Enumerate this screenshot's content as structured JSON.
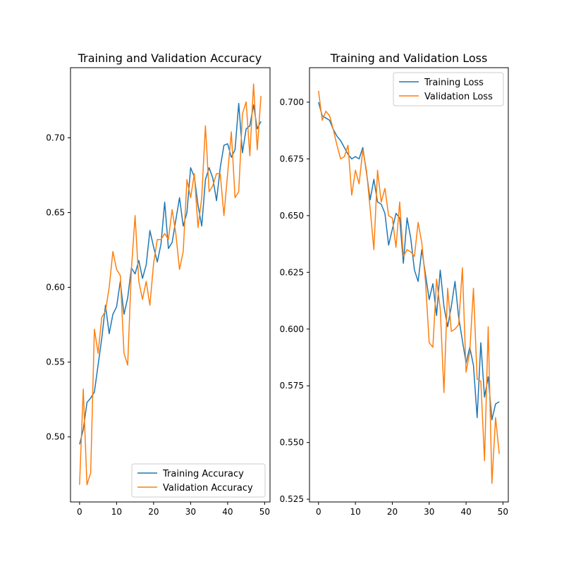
{
  "chart_data": [
    {
      "type": "line",
      "title": "Training and Validation Accuracy",
      "xlabel": "",
      "ylabel": "",
      "xlim": [
        -2.45,
        51.45
      ],
      "ylim": [
        0.4565,
        0.7469
      ],
      "xticks": [
        0,
        10,
        20,
        30,
        40,
        50
      ],
      "yticks": [
        0.5,
        0.55,
        0.6,
        0.65,
        0.7
      ],
      "ytick_labels": [
        "0.50",
        "0.55",
        "0.60",
        "0.65",
        "0.70"
      ],
      "grid": false,
      "legend_position": "lower-right",
      "x": [
        0,
        1,
        2,
        3,
        4,
        5,
        6,
        7,
        8,
        9,
        10,
        11,
        12,
        13,
        14,
        15,
        16,
        17,
        18,
        19,
        20,
        21,
        22,
        23,
        24,
        25,
        26,
        27,
        28,
        29,
        30,
        31,
        32,
        33,
        34,
        35,
        36,
        37,
        38,
        39,
        40,
        41,
        42,
        43,
        44,
        45,
        46,
        47,
        48,
        49
      ],
      "series": [
        {
          "name": "Training Accuracy",
          "color": "#1f77b4",
          "values": [
            0.495,
            0.505,
            0.523,
            0.526,
            0.53,
            0.548,
            0.566,
            0.588,
            0.569,
            0.582,
            0.587,
            0.604,
            0.582,
            0.593,
            0.613,
            0.609,
            0.618,
            0.606,
            0.615,
            0.638,
            0.627,
            0.617,
            0.629,
            0.657,
            0.626,
            0.63,
            0.645,
            0.66,
            0.641,
            0.65,
            0.68,
            0.674,
            0.655,
            0.641,
            0.672,
            0.68,
            0.673,
            0.658,
            0.68,
            0.695,
            0.696,
            0.687,
            0.692,
            0.723,
            0.69,
            0.706,
            0.708,
            0.722,
            0.706,
            0.711
          ]
        },
        {
          "name": "Validation Accuracy",
          "color": "#ff7f0e",
          "values": [
            0.468,
            0.532,
            0.468,
            0.476,
            0.572,
            0.556,
            0.58,
            0.584,
            0.6,
            0.624,
            0.612,
            0.608,
            0.556,
            0.548,
            0.612,
            0.648,
            0.604,
            0.592,
            0.604,
            0.588,
            0.616,
            0.632,
            0.632,
            0.636,
            0.632,
            0.652,
            0.636,
            0.612,
            0.624,
            0.672,
            0.66,
            0.676,
            0.64,
            0.66,
            0.708,
            0.664,
            0.668,
            0.676,
            0.676,
            0.648,
            0.676,
            0.704,
            0.66,
            0.664,
            0.716,
            0.724,
            0.688,
            0.736,
            0.692,
            0.728
          ]
        }
      ]
    },
    {
      "type": "line",
      "title": "Training and Validation Loss",
      "xlabel": "",
      "ylabel": "",
      "xlim": [
        -2.45,
        51.45
      ],
      "ylim": [
        0.5238,
        0.7152
      ],
      "xticks": [
        0,
        10,
        20,
        30,
        40,
        50
      ],
      "yticks": [
        0.525,
        0.55,
        0.575,
        0.6,
        0.625,
        0.65,
        0.675,
        0.7
      ],
      "ytick_labels": [
        "0.525",
        "0.550",
        "0.575",
        "0.600",
        "0.625",
        "0.650",
        "0.675",
        "0.700"
      ],
      "grid": false,
      "legend_position": "top-right",
      "x": [
        0,
        1,
        2,
        3,
        4,
        5,
        6,
        7,
        8,
        9,
        10,
        11,
        12,
        13,
        14,
        15,
        16,
        17,
        18,
        19,
        20,
        21,
        22,
        23,
        24,
        25,
        26,
        27,
        28,
        29,
        30,
        31,
        32,
        33,
        34,
        35,
        36,
        37,
        38,
        39,
        40,
        41,
        42,
        43,
        44,
        45,
        46,
        47,
        48,
        49
      ],
      "series": [
        {
          "name": "Training Loss",
          "color": "#1f77b4",
          "values": [
            0.7,
            0.694,
            0.693,
            0.692,
            0.688,
            0.685,
            0.683,
            0.68,
            0.677,
            0.675,
            0.676,
            0.675,
            0.68,
            0.669,
            0.657,
            0.666,
            0.656,
            0.655,
            0.651,
            0.637,
            0.644,
            0.651,
            0.649,
            0.629,
            0.649,
            0.64,
            0.626,
            0.621,
            0.635,
            0.624,
            0.613,
            0.62,
            0.606,
            0.626,
            0.61,
            0.601,
            0.61,
            0.621,
            0.605,
            0.595,
            0.585,
            0.592,
            0.584,
            0.561,
            0.594,
            0.57,
            0.579,
            0.56,
            0.567,
            0.568
          ]
        },
        {
          "name": "Validation Loss",
          "color": "#ff7f0e",
          "values": [
            0.705,
            0.692,
            0.696,
            0.694,
            0.688,
            0.681,
            0.675,
            0.676,
            0.681,
            0.659,
            0.67,
            0.664,
            0.679,
            0.67,
            0.653,
            0.635,
            0.67,
            0.656,
            0.662,
            0.65,
            0.649,
            0.636,
            0.656,
            0.632,
            0.635,
            0.634,
            0.632,
            0.647,
            0.638,
            0.621,
            0.594,
            0.592,
            0.622,
            0.609,
            0.572,
            0.618,
            0.599,
            0.6,
            0.602,
            0.627,
            0.581,
            0.59,
            0.618,
            0.578,
            0.577,
            0.542,
            0.601,
            0.532,
            0.561,
            0.545
          ]
        }
      ]
    }
  ]
}
